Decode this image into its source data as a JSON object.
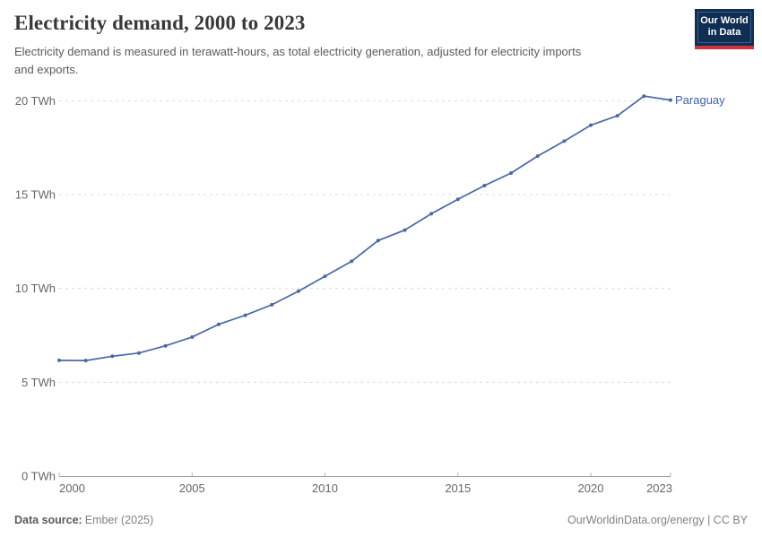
{
  "header": {
    "title": "Electricity demand, 2000 to 2023",
    "subtitle": "Electricity demand is measured in terawatt-hours, as total electricity generation, adjusted for electricity imports\nand exports.",
    "logo_line1": "Our World",
    "logo_line2": "in Data"
  },
  "chart_data": {
    "type": "line",
    "title": "Electricity demand, 2000 to 2023",
    "ylabel": "",
    "xlabel": "",
    "unit": "TWh",
    "xlim": [
      2000,
      2023
    ],
    "ylim": [
      0,
      20
    ],
    "grid": "horizontal-dashed",
    "legend_position": "end-of-line-label",
    "series": [
      {
        "name": "Paraguay",
        "x": [
          2000,
          2001,
          2002,
          2003,
          2004,
          2005,
          2006,
          2007,
          2008,
          2009,
          2010,
          2011,
          2012,
          2013,
          2014,
          2015,
          2016,
          2017,
          2018,
          2019,
          2020,
          2021,
          2022,
          2023
        ],
        "values": [
          6.17,
          6.16,
          6.39,
          6.56,
          6.94,
          7.41,
          8.09,
          8.57,
          9.13,
          9.85,
          10.65,
          11.45,
          12.55,
          13.11,
          13.98,
          14.75,
          15.48,
          16.15,
          17.05,
          17.85,
          18.7,
          19.2,
          20.25,
          20.04
        ]
      }
    ],
    "xticks": [
      {
        "v": 2000,
        "label": "2000"
      },
      {
        "v": 2005,
        "label": "2005"
      },
      {
        "v": 2010,
        "label": "2010"
      },
      {
        "v": 2015,
        "label": "2015"
      },
      {
        "v": 2020,
        "label": "2020"
      },
      {
        "v": 2023,
        "label": "2023"
      }
    ],
    "yticks": [
      {
        "v": 0,
        "label": "0 TWh"
      },
      {
        "v": 5,
        "label": "5 TWh"
      },
      {
        "v": 10,
        "label": "10 TWh"
      },
      {
        "v": 15,
        "label": "15 TWh"
      },
      {
        "v": 20,
        "label": "20 TWh"
      }
    ],
    "colors": {
      "line": "#4a68a5",
      "entity_label": "#3d63a8",
      "grid": "#dcdcdc",
      "axis": "#999999",
      "tick": "#b3b3b3",
      "axis_text": "#666666"
    }
  },
  "footer": {
    "datasource_label": "Data source:",
    "datasource_value": "Ember (2025)",
    "credit": "OurWorldinData.org/energy | CC BY"
  }
}
